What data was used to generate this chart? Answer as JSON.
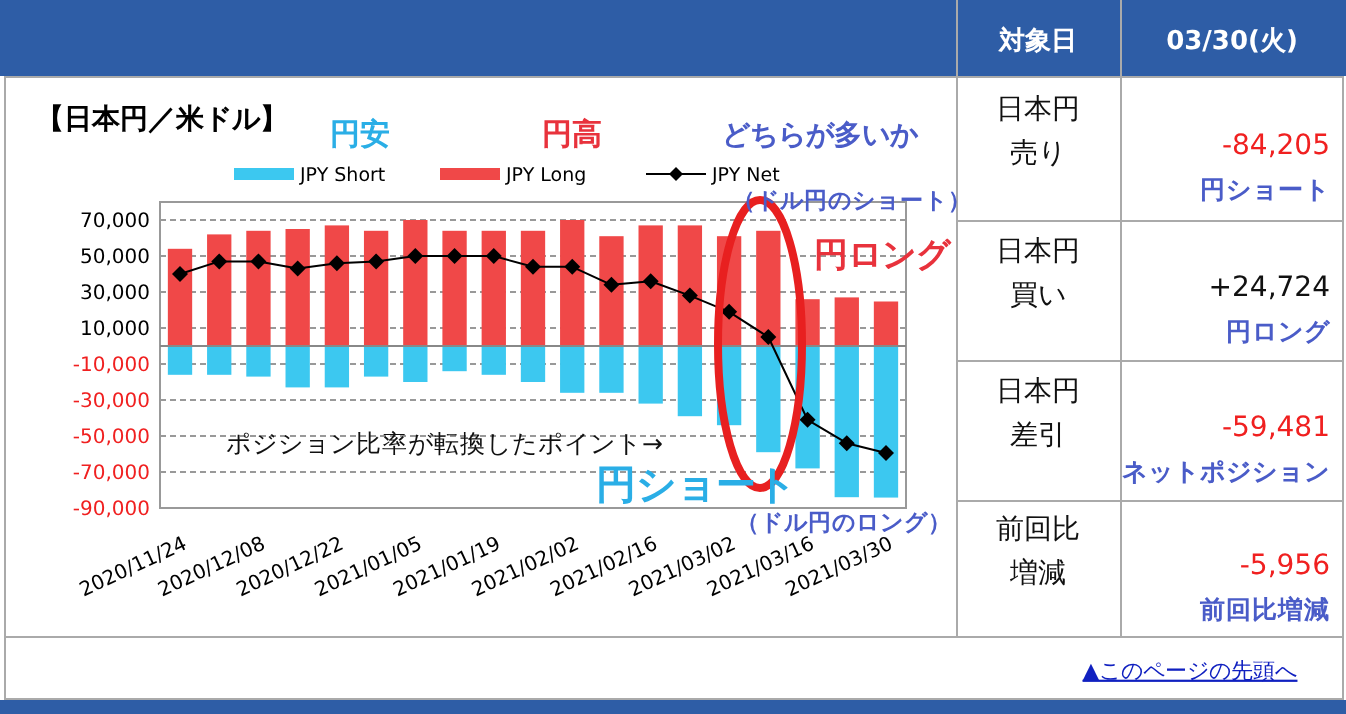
{
  "chart_data": [
    {
      "type": "bar",
      "title": "【日本円／米ドル】",
      "categories": [
        "2020/11/24",
        null,
        "2020/12/08",
        null,
        "2020/12/22",
        null,
        "2021/01/05",
        null,
        "2021/01/19",
        null,
        "2021/02/02",
        null,
        "2021/02/16",
        null,
        "2021/03/02",
        null,
        "2021/03/16",
        null,
        "2021/03/30"
      ],
      "series": [
        {
          "name": "JPY Short",
          "color": "#3cc8f0",
          "values": [
            -16000,
            -16000,
            -17000,
            -23000,
            -23000,
            -17000,
            -20000,
            -14000,
            -16000,
            -20000,
            -26000,
            -26000,
            -32000,
            -39000,
            -44000,
            -59000,
            -68000,
            -84000,
            -84205
          ]
        },
        {
          "name": "JPY Long",
          "color": "#f04848",
          "values": [
            54000,
            62000,
            64000,
            65000,
            67000,
            64000,
            70000,
            64000,
            64000,
            64000,
            70000,
            61000,
            67000,
            67000,
            61000,
            64000,
            26000,
            27000,
            24724
          ]
        },
        {
          "name": "JPY Net",
          "type": "line",
          "color": "#000000",
          "marker": "diamond",
          "values": [
            40000,
            47000,
            47000,
            43000,
            46000,
            47000,
            50000,
            50000,
            50000,
            44000,
            44000,
            34000,
            36000,
            28000,
            19000,
            5000,
            -41000,
            -54000,
            -59481
          ]
        }
      ],
      "stacked": true,
      "ylim": [
        -90000,
        80000
      ],
      "yticks": [
        {
          "value": 70000,
          "label": "70,000"
        },
        {
          "value": 50000,
          "label": "50,000"
        },
        {
          "value": 30000,
          "label": "30,000"
        },
        {
          "value": 10000,
          "label": "10,000"
        },
        {
          "value": -10000,
          "label": "-10,000"
        },
        {
          "value": -30000,
          "label": "-30,000"
        },
        {
          "value": -50000,
          "label": "-50,000"
        },
        {
          "value": -70000,
          "label": "-70,000"
        },
        {
          "value": -90000,
          "label": "-90,000"
        }
      ],
      "grid": "y",
      "legend": "top",
      "annotations": [
        "円安",
        "円高",
        "どちらが多いか",
        "（ドル円のショート）",
        "円ロング",
        "ポジション比率が転換したポイント→",
        "円ショート",
        "（ドル円のロング）"
      ]
    },
    {
      "type": "other",
      "annotations": [
        "対象日",
        "03/30(火)",
        "日本円売り",
        "-84,205",
        "円ショート",
        "日本円買い",
        "+24,724",
        "円ロング",
        "日本円差引",
        "-59,481",
        "ネットポジション",
        "前回比増減",
        "-5,956",
        "前回比増減",
        "▲このページの先頭へ"
      ]
    }
  ]
}
